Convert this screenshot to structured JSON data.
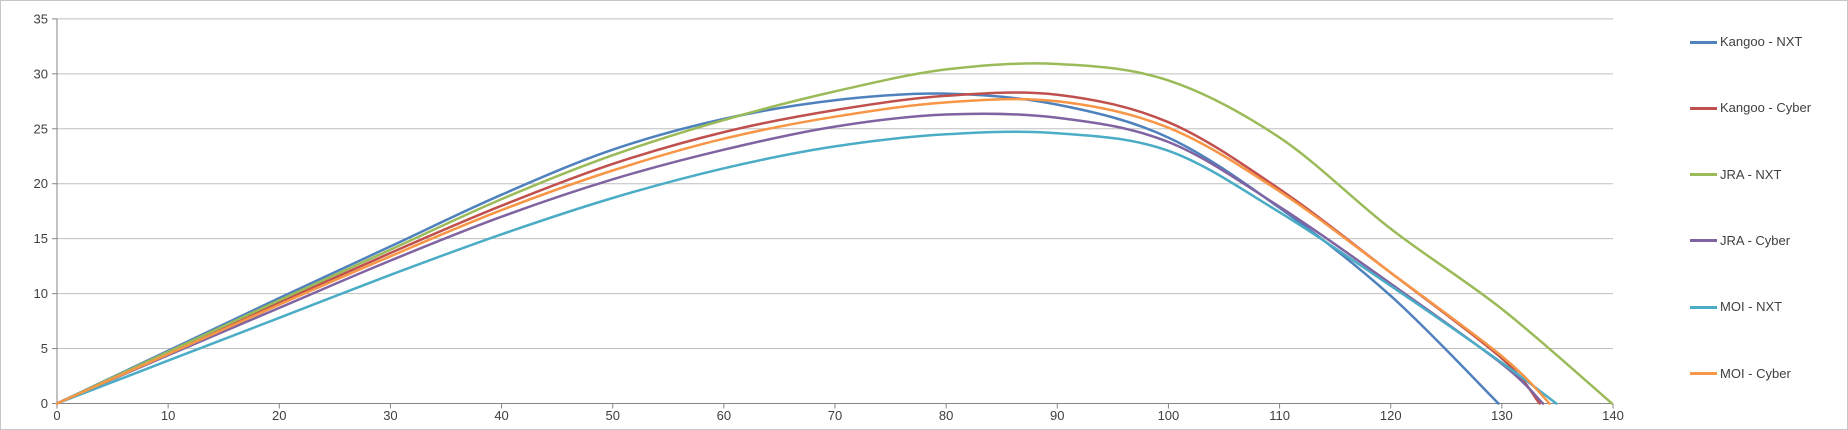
{
  "frame": {
    "background": "#FFFFFF",
    "border_color": "#C6C6C6"
  },
  "chart_data": {
    "type": "line",
    "title": "",
    "xlabel": "",
    "ylabel": "",
    "grid": {
      "horizontal": true,
      "vertical": false,
      "color": "#BFBFBF"
    },
    "axis_color": "#868686",
    "tick_label_color": "#404040",
    "legend_position": "right",
    "x_axis": {
      "min": 0,
      "max": 140,
      "tick_step": 10,
      "tick_labels": [
        "0",
        "10",
        "20",
        "30",
        "40",
        "50",
        "60",
        "70",
        "80",
        "90",
        "100",
        "110",
        "120",
        "130",
        "140"
      ]
    },
    "y_axis": {
      "min": 0,
      "max": 35,
      "tick_step": 5,
      "tick_labels": [
        "0",
        "5",
        "10",
        "15",
        "20",
        "25",
        "30",
        "35"
      ]
    },
    "x": [
      0,
      10,
      20,
      30,
      40,
      50,
      60,
      70,
      80,
      90,
      100,
      110,
      120,
      130
    ],
    "series": [
      {
        "name": "Kangoo - NXT",
        "color": "#4F81BD",
        "land_x": 129.7,
        "y": [
          0,
          4.8,
          9.6,
          14.3,
          19.0,
          23.1,
          25.9,
          27.6,
          28.2,
          27.2,
          24.2,
          17.8,
          9.8,
          null
        ]
      },
      {
        "name": "Kangoo - Cyber",
        "color": "#C0504D",
        "land_x": 133.4,
        "y": [
          0,
          4.6,
          9.2,
          13.7,
          18.0,
          21.8,
          24.7,
          26.7,
          28.0,
          28.1,
          25.6,
          19.5,
          11.9,
          4.1
        ]
      },
      {
        "name": "JRA - NXT",
        "color": "#9BBB59",
        "land_x": 139.9,
        "y": [
          0,
          4.7,
          9.4,
          14.0,
          18.6,
          22.6,
          25.8,
          28.4,
          30.4,
          30.9,
          29.4,
          24.2,
          15.9,
          8.6
        ]
      },
      {
        "name": "JRA - Cyber",
        "color": "#8064A2",
        "land_x": 133.7,
        "y": [
          0,
          4.4,
          8.7,
          13.0,
          17.0,
          20.4,
          23.1,
          25.2,
          26.3,
          26.0,
          23.8,
          17.9,
          10.9,
          3.6
        ]
      },
      {
        "name": "MOI - NXT",
        "color": "#4BACC6",
        "land_x": 134.9,
        "y": [
          0,
          3.9,
          7.8,
          11.7,
          15.4,
          18.7,
          21.4,
          23.4,
          24.5,
          24.6,
          23.0,
          17.4,
          10.7,
          3.7
        ]
      },
      {
        "name": "MOI - Cyber",
        "color": "#F79646",
        "land_x": 134.3,
        "y": [
          0,
          4.5,
          9.0,
          13.4,
          17.6,
          21.2,
          24.1,
          26.1,
          27.4,
          27.5,
          25.1,
          19.3,
          11.9,
          4.3
        ]
      }
    ],
    "legend": [
      {
        "label": "Kangoo - NXT",
        "color": "#4F81BD"
      },
      {
        "label": "Kangoo - Cyber",
        "color": "#C0504D"
      },
      {
        "label": "JRA - NXT",
        "color": "#9BBB59"
      },
      {
        "label": "JRA - Cyber",
        "color": "#8064A2"
      },
      {
        "label": "MOI - NXT",
        "color": "#4BACC6"
      },
      {
        "label": "MOI - Cyber",
        "color": "#F79646"
      }
    ]
  }
}
